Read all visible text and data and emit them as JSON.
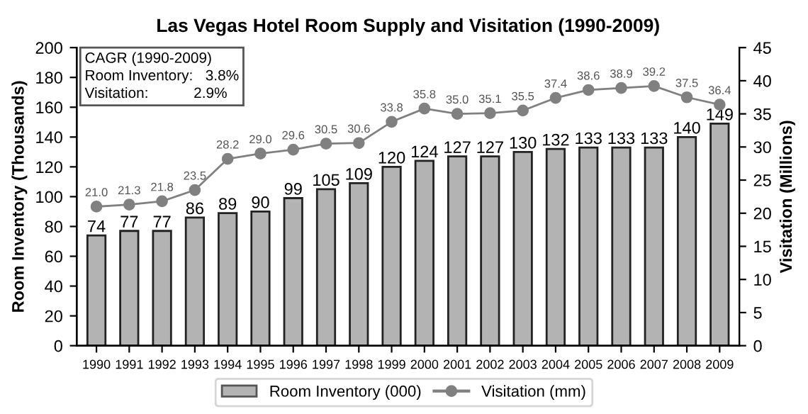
{
  "chart_data": {
    "type": "bar",
    "title": "Las Vegas Hotel Room Supply and Visitation (1990-2009)",
    "categories": [
      "1990",
      "1991",
      "1992",
      "1993",
      "1994",
      "1995",
      "1996",
      "1997",
      "1998",
      "1999",
      "2000",
      "2001",
      "2002",
      "2003",
      "2004",
      "2005",
      "2006",
      "2007",
      "2008",
      "2009"
    ],
    "series": [
      {
        "name": "Room Inventory (000)",
        "color": "#b3b3b3",
        "values": [
          74,
          77,
          77,
          86,
          89,
          90,
          99,
          105,
          109,
          120,
          124,
          127,
          127,
          130,
          132,
          133,
          133,
          133,
          140,
          149
        ]
      },
      {
        "name": "Visitation (mm)",
        "type": "line",
        "axis": "y2",
        "color": "#808080",
        "marker": "circle",
        "values": [
          21.0,
          21.3,
          21.8,
          23.5,
          28.2,
          29.0,
          29.6,
          30.5,
          30.6,
          33.8,
          35.8,
          35.0,
          35.1,
          35.5,
          37.4,
          38.6,
          38.9,
          39.2,
          37.5,
          36.4
        ],
        "value_labels": [
          "21.0",
          "21.3",
          "21.8",
          "23.5",
          "28.2",
          "29.0",
          "29.6",
          "30.5",
          "30.6",
          "33.8",
          "35.8",
          "35.0",
          "35.1",
          "35.5",
          "37.4",
          "38.6",
          "38.9",
          "39.2",
          "37.5",
          "36.4"
        ]
      }
    ],
    "ylabel": "Room Inventory (Thousands)",
    "y2label": "Visitation (Millions)",
    "ylim": [
      0,
      200
    ],
    "yticks": [
      0,
      20,
      40,
      60,
      80,
      100,
      120,
      140,
      160,
      180,
      200
    ],
    "y2lim": [
      0,
      45
    ],
    "y2ticks": [
      0,
      5,
      10,
      15,
      20,
      25,
      30,
      35,
      40,
      45
    ],
    "data_labels": true,
    "grid": false,
    "legend": "bottom",
    "annotations": [
      "CAGR (1990-2009)",
      "Room Inventory:   3.8%",
      "Visitation:           2.9%"
    ]
  }
}
